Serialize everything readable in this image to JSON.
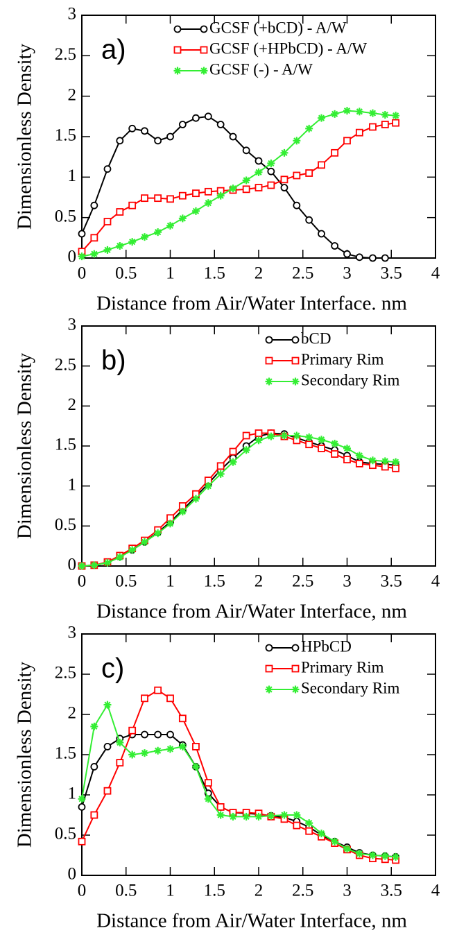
{
  "chart_data": [
    {
      "type": "line",
      "annotation": "a)",
      "xlabel": "Distance from Air/Water Interface. nm",
      "ylabel": "Dimensionless Density",
      "xlim": [
        0,
        4
      ],
      "ylim": [
        0,
        3
      ],
      "xticks": [
        0,
        0.5,
        1,
        1.5,
        2,
        2.5,
        3,
        3.5,
        4
      ],
      "yticks": [
        0,
        0.5,
        1,
        1.5,
        2,
        2.5,
        3
      ],
      "legend": "upper right",
      "x": [
        0,
        0.14,
        0.29,
        0.43,
        0.57,
        0.71,
        0.86,
        1,
        1.14,
        1.29,
        1.43,
        1.57,
        1.71,
        1.86,
        2,
        2.14,
        2.29,
        2.43,
        2.57,
        2.71,
        2.86,
        3,
        3.14,
        3.29,
        3.43,
        3.55
      ],
      "series": [
        {
          "name": "GCSF (+bCD) - A/W",
          "color": "#000000",
          "marker": "circle",
          "values": [
            0.3,
            0.65,
            1.1,
            1.45,
            1.6,
            1.57,
            1.45,
            1.5,
            1.65,
            1.73,
            1.75,
            1.65,
            1.5,
            1.33,
            1.2,
            1.07,
            0.87,
            0.65,
            0.47,
            0.3,
            0.15,
            0.05,
            0.01,
            0,
            0,
            null
          ]
        },
        {
          "name": "GCSF (+HPbCD) - A/W",
          "color": "#ff0000",
          "marker": "square",
          "values": [
            0.08,
            0.25,
            0.45,
            0.57,
            0.65,
            0.74,
            0.74,
            0.73,
            0.77,
            0.8,
            0.82,
            0.83,
            0.84,
            0.85,
            0.87,
            0.9,
            0.97,
            1.02,
            1.05,
            1.15,
            1.3,
            1.45,
            1.55,
            1.62,
            1.65,
            1.67
          ]
        },
        {
          "name": "GCSF (-) - A/W",
          "color": "#33ee33",
          "marker": "star",
          "values": [
            0.02,
            0.05,
            0.1,
            0.15,
            0.2,
            0.26,
            0.32,
            0.4,
            0.49,
            0.58,
            0.68,
            0.77,
            0.86,
            0.96,
            1.06,
            1.17,
            1.3,
            1.45,
            1.6,
            1.73,
            1.78,
            1.82,
            1.81,
            1.79,
            1.77,
            1.76
          ]
        }
      ]
    },
    {
      "type": "line",
      "annotation": "b)",
      "xlabel": "Distance from Air/Water Interface, nm",
      "ylabel": "Dimensionless Density",
      "xlim": [
        0,
        4
      ],
      "ylim": [
        0,
        3
      ],
      "xticks": [
        0,
        0.5,
        1,
        1.5,
        2,
        2.5,
        3,
        3.5,
        4
      ],
      "yticks": [
        0,
        0.5,
        1,
        1.5,
        2,
        2.5,
        3
      ],
      "legend": "upper right",
      "x": [
        0,
        0.14,
        0.29,
        0.43,
        0.57,
        0.71,
        0.86,
        1,
        1.14,
        1.29,
        1.43,
        1.57,
        1.71,
        1.86,
        2,
        2.14,
        2.29,
        2.43,
        2.57,
        2.71,
        2.86,
        3,
        3.14,
        3.29,
        3.43,
        3.55
      ],
      "series": [
        {
          "name": "bCD",
          "color": "#000000",
          "marker": "circle",
          "values": [
            0,
            0.01,
            0.04,
            0.12,
            0.2,
            0.3,
            0.42,
            0.55,
            0.7,
            0.87,
            1.03,
            1.2,
            1.35,
            1.5,
            1.62,
            1.66,
            1.65,
            1.6,
            1.55,
            1.5,
            1.45,
            1.38,
            1.3,
            1.28,
            1.27,
            1.26
          ]
        },
        {
          "name": "Primary Rim",
          "color": "#ff0000",
          "marker": "square",
          "values": [
            0,
            0.01,
            0.05,
            0.13,
            0.22,
            0.32,
            0.45,
            0.6,
            0.75,
            0.9,
            1.07,
            1.25,
            1.43,
            1.63,
            1.66,
            1.66,
            1.62,
            1.57,
            1.52,
            1.47,
            1.4,
            1.33,
            1.28,
            1.26,
            1.24,
            1.22
          ]
        },
        {
          "name": "Secondary Rim",
          "color": "#33ee33",
          "marker": "star",
          "values": [
            0,
            0.01,
            0.04,
            0.11,
            0.2,
            0.3,
            0.41,
            0.53,
            0.68,
            0.84,
            1.0,
            1.15,
            1.3,
            1.45,
            1.57,
            1.62,
            1.63,
            1.63,
            1.61,
            1.58,
            1.53,
            1.47,
            1.38,
            1.32,
            1.31,
            1.3
          ]
        }
      ]
    },
    {
      "type": "line",
      "annotation": "c)",
      "xlabel": "Distance from Air/Water Interface, nm",
      "ylabel": "Dimensionless Density",
      "xlim": [
        0,
        4
      ],
      "ylim": [
        0,
        3
      ],
      "xticks": [
        0,
        0.5,
        1,
        1.5,
        2,
        2.5,
        3,
        3.5,
        4
      ],
      "yticks": [
        0,
        0.5,
        1,
        1.5,
        2,
        2.5,
        3
      ],
      "legend": "upper right",
      "x": [
        0,
        0.14,
        0.29,
        0.43,
        0.57,
        0.71,
        0.86,
        1,
        1.14,
        1.29,
        1.43,
        1.57,
        1.71,
        1.86,
        2,
        2.14,
        2.29,
        2.43,
        2.57,
        2.71,
        2.86,
        3,
        3.14,
        3.29,
        3.43,
        3.55
      ],
      "series": [
        {
          "name": "HPbCD",
          "color": "#000000",
          "marker": "circle",
          "values": [
            0.85,
            1.35,
            1.6,
            1.7,
            1.75,
            1.75,
            1.75,
            1.75,
            1.62,
            1.35,
            1.02,
            0.85,
            0.78,
            0.77,
            0.76,
            0.74,
            0.72,
            0.67,
            0.6,
            0.5,
            0.42,
            0.35,
            0.28,
            0.25,
            0.24,
            0.23
          ]
        },
        {
          "name": "Primary Rim",
          "color": "#ff0000",
          "marker": "square",
          "values": [
            0.42,
            0.75,
            1.05,
            1.4,
            1.8,
            2.2,
            2.3,
            2.2,
            1.95,
            1.6,
            1.15,
            0.85,
            0.78,
            0.78,
            0.77,
            0.73,
            0.7,
            0.62,
            0.55,
            0.48,
            0.4,
            0.32,
            0.25,
            0.21,
            0.2,
            0.19
          ]
        },
        {
          "name": "Secondary Rim",
          "color": "#33ee33",
          "marker": "star",
          "values": [
            0.95,
            1.85,
            2.12,
            1.65,
            1.5,
            1.52,
            1.55,
            1.57,
            1.6,
            1.35,
            0.95,
            0.75,
            0.73,
            0.73,
            0.73,
            0.74,
            0.75,
            0.75,
            0.65,
            0.52,
            0.42,
            0.33,
            0.27,
            0.25,
            0.24,
            0.23
          ]
        }
      ]
    }
  ]
}
